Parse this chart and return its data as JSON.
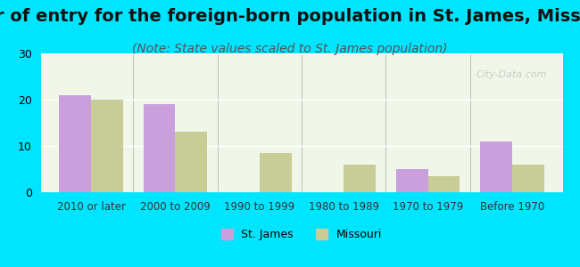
{
  "title": "Year of entry for the foreign-born population in St. James, Missouri",
  "subtitle": "(Note: State values scaled to St. James population)",
  "categories": [
    "2010 or later",
    "2000 to 2009",
    "1990 to 1999",
    "1980 to 1989",
    "1970 to 1979",
    "Before 1970"
  ],
  "st_james_values": [
    21,
    19,
    0,
    0,
    5,
    11
  ],
  "missouri_values": [
    20,
    13,
    8.5,
    6,
    3.5,
    6
  ],
  "st_james_color": "#c9a0dc",
  "missouri_color": "#c8cc96",
  "background_outer": "#00e5ff",
  "background_chart": "#f0f7e8",
  "ylim": [
    0,
    30
  ],
  "yticks": [
    0,
    10,
    20,
    30
  ],
  "bar_width": 0.38,
  "title_fontsize": 14,
  "subtitle_fontsize": 10,
  "watermark": "City-Data.com"
}
